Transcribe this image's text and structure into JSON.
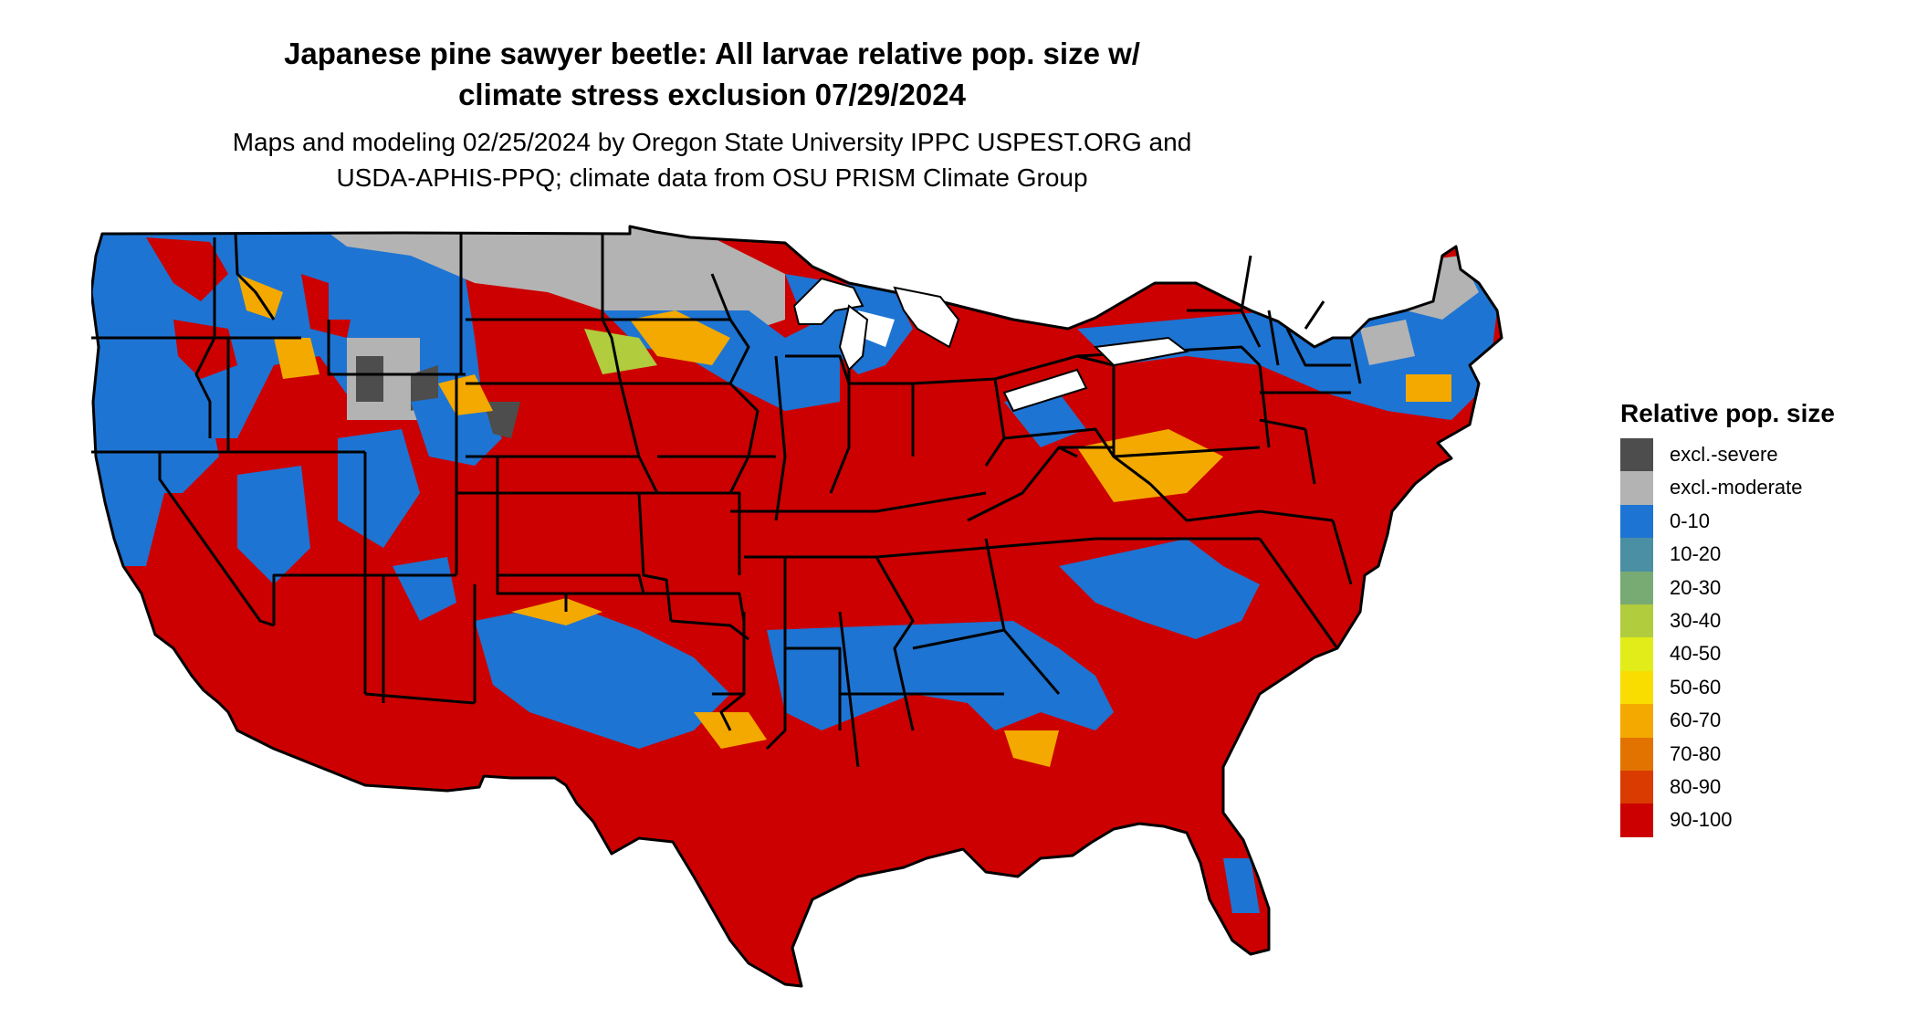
{
  "title": {
    "line1": "Japanese pine sawyer beetle: All larvae relative pop. size w/",
    "line2": "climate stress exclusion 07/29/2024"
  },
  "subtitle": {
    "line1": "Maps and modeling 02/25/2024 by Oregon State University IPPC USPEST.ORG and",
    "line2": "USDA-APHIS-PPQ; climate data from OSU PRISM Climate Group"
  },
  "legend": {
    "title": "Relative pop. size",
    "items": [
      {
        "label": "excl.-severe",
        "color": "#4d4d4d"
      },
      {
        "label": "excl.-moderate",
        "color": "#b3b3b3"
      },
      {
        "label": "0-10",
        "color": "#1e74d2"
      },
      {
        "label": "10-20",
        "color": "#4a8fa3"
      },
      {
        "label": "20-30",
        "color": "#78aa74"
      },
      {
        "label": "30-40",
        "color": "#b1cc3c"
      },
      {
        "label": "40-50",
        "color": "#e1ec18"
      },
      {
        "label": "50-60",
        "color": "#f9dc00"
      },
      {
        "label": "60-70",
        "color": "#f3a900"
      },
      {
        "label": "70-80",
        "color": "#e27300"
      },
      {
        "label": "80-90",
        "color": "#d93b00"
      },
      {
        "label": "90-100",
        "color": "#cc0000"
      }
    ]
  },
  "map": {
    "region": "contiguous United States",
    "boundary_color": "#000000"
  }
}
